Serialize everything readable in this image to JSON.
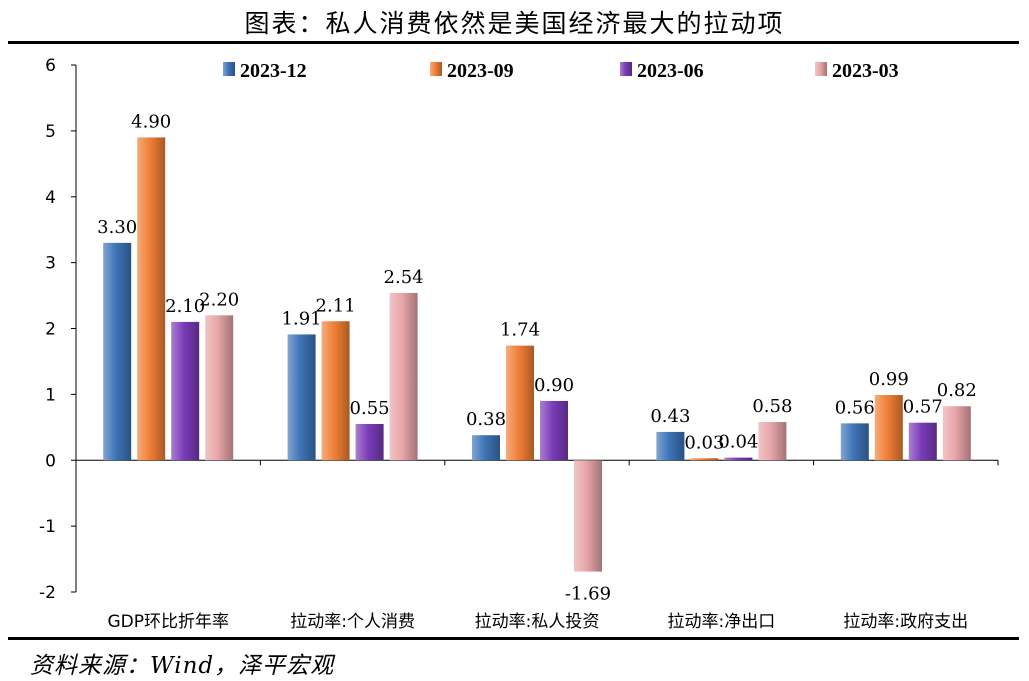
{
  "header": {
    "title": "图表：私人消费依然是美国经济最大的拉动项"
  },
  "footer": {
    "source": "资料来源：Wind，泽平宏观"
  },
  "chart_data": {
    "type": "bar",
    "title": "",
    "xlabel": "",
    "ylabel": "",
    "ylim": [
      -2,
      6
    ],
    "yticks": [
      6,
      5,
      4,
      3,
      2,
      1,
      0,
      -1,
      -2
    ],
    "grid": false,
    "legend_position": "top",
    "categories": [
      "GDP环比折年率",
      "拉动率:个人消费",
      "拉动率:私人投资",
      "拉动率:净出口",
      "拉动率:政府支出"
    ],
    "series": [
      {
        "name": "2023-12",
        "color": "#3E74B8",
        "values": [
          3.3,
          1.91,
          0.38,
          0.43,
          0.56
        ]
      },
      {
        "name": "2023-09",
        "color": "#F07F35",
        "values": [
          4.9,
          2.11,
          1.74,
          0.03,
          0.99
        ]
      },
      {
        "name": "2023-06",
        "color": "#7B3BB8",
        "values": [
          2.1,
          0.55,
          0.9,
          0.04,
          0.57
        ]
      },
      {
        "name": "2023-03",
        "color": "#E8A5A8",
        "values": [
          2.2,
          2.54,
          -1.69,
          0.58,
          0.82
        ]
      }
    ]
  }
}
